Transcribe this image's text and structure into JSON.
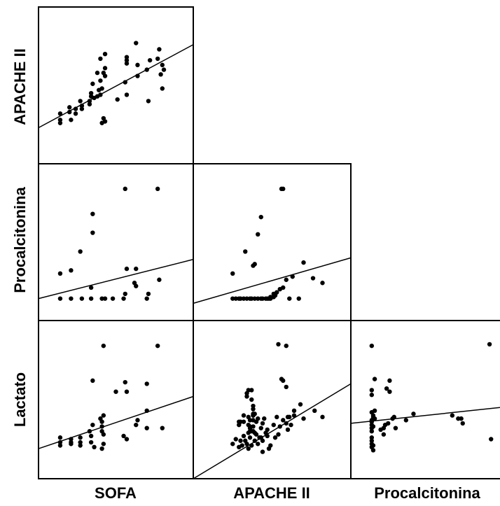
{
  "chart_data": {
    "type": "scatter",
    "variables": [
      "SOFA",
      "APACHE II",
      "Procalcitonina",
      "Lactato"
    ],
    "x_labels": [
      "SOFA",
      "APACHE II",
      "Procalcitonina"
    ],
    "y_labels": [
      "APACHE II",
      "Procalcitonina",
      "Lactato"
    ],
    "grid": false,
    "colors": {
      "points": "#000000",
      "lines": "#000000",
      "background": "#ffffff"
    },
    "panels": [
      {
        "id": "apache-vs-sofa",
        "x_var": "SOFA",
        "y_var": "APACHE II",
        "xlim": [
          0,
          100
        ],
        "ylim": [
          0,
          100
        ],
        "fit": [
          [
            0,
            23
          ],
          [
            100,
            76
          ]
        ],
        "points": [
          [
            14,
            32
          ],
          [
            14,
            28
          ],
          [
            14,
            26
          ],
          [
            20,
            33
          ],
          [
            20,
            36
          ],
          [
            21,
            28
          ],
          [
            24,
            35
          ],
          [
            24,
            32
          ],
          [
            27,
            40
          ],
          [
            28,
            37
          ],
          [
            28,
            35
          ],
          [
            33,
            40
          ],
          [
            33,
            38
          ],
          [
            34,
            43
          ],
          [
            34,
            45
          ],
          [
            35,
            51
          ],
          [
            36,
            42
          ],
          [
            38,
            43
          ],
          [
            39,
            47
          ],
          [
            38,
            58
          ],
          [
            40,
            67
          ],
          [
            40,
            44
          ],
          [
            41,
            48
          ],
          [
            40,
            53
          ],
          [
            42,
            58
          ],
          [
            41,
            26
          ],
          [
            43,
            27
          ],
          [
            42,
            29
          ],
          [
            43,
            70
          ],
          [
            43,
            61
          ],
          [
            43,
            56
          ],
          [
            51,
            41
          ],
          [
            56,
            52
          ],
          [
            57,
            64
          ],
          [
            57,
            68
          ],
          [
            57,
            66
          ],
          [
            57,
            44
          ],
          [
            63,
            77
          ],
          [
            64,
            63
          ],
          [
            64,
            56
          ],
          [
            70,
            60
          ],
          [
            72,
            66
          ],
          [
            71,
            40
          ],
          [
            78,
            73
          ],
          [
            77,
            67
          ],
          [
            79,
            57
          ],
          [
            80,
            48
          ],
          [
            81,
            60
          ],
          [
            80,
            63
          ]
        ]
      },
      {
        "id": "pct-vs-sofa",
        "x_var": "SOFA",
        "y_var": "Procalcitonina",
        "xlim": [
          0,
          100
        ],
        "ylim": [
          0,
          100
        ],
        "fit": [
          [
            0,
            14
          ],
          [
            100,
            39
          ]
        ],
        "points": [
          [
            14,
            14
          ],
          [
            21,
            14
          ],
          [
            28,
            14
          ],
          [
            34,
            14
          ],
          [
            41,
            14
          ],
          [
            43,
            14
          ],
          [
            48,
            14
          ],
          [
            55,
            14
          ],
          [
            56,
            17
          ],
          [
            62,
            24
          ],
          [
            70,
            14
          ],
          [
            71,
            17
          ],
          [
            14,
            30
          ],
          [
            21,
            32
          ],
          [
            27,
            44
          ],
          [
            34,
            21
          ],
          [
            35,
            56
          ],
          [
            35,
            68
          ],
          [
            57,
            33
          ],
          [
            56,
            84
          ],
          [
            63,
            22
          ],
          [
            63,
            33
          ],
          [
            77,
            84
          ],
          [
            78,
            26
          ]
        ]
      },
      {
        "id": "pct-vs-apache",
        "x_var": "APACHE II",
        "y_var": "Procalcitonina",
        "xlim": [
          0,
          100
        ],
        "ylim": [
          0,
          100
        ],
        "fit": [
          [
            0,
            11
          ],
          [
            100,
            40
          ]
        ],
        "points": [
          [
            25,
            14
          ],
          [
            27,
            14
          ],
          [
            29,
            14
          ],
          [
            30,
            14
          ],
          [
            32,
            14
          ],
          [
            34,
            14
          ],
          [
            36,
            14
          ],
          [
            37,
            14
          ],
          [
            39,
            14
          ],
          [
            41,
            14
          ],
          [
            43,
            14
          ],
          [
            44,
            14
          ],
          [
            46,
            14
          ],
          [
            47,
            14
          ],
          [
            48,
            14
          ],
          [
            49,
            14
          ],
          [
            49,
            15
          ],
          [
            51,
            15
          ],
          [
            52,
            16
          ],
          [
            51,
            17
          ],
          [
            55,
            20
          ],
          [
            53,
            18
          ],
          [
            57,
            21
          ],
          [
            59,
            26
          ],
          [
            61,
            14
          ],
          [
            63,
            28
          ],
          [
            67,
            14
          ],
          [
            70,
            37
          ],
          [
            76,
            27
          ],
          [
            82,
            24
          ],
          [
            25,
            30
          ],
          [
            33,
            44
          ],
          [
            38,
            35
          ],
          [
            39,
            36
          ],
          [
            41,
            55
          ],
          [
            43,
            66
          ],
          [
            56,
            84
          ],
          [
            57,
            84
          ]
        ]
      },
      {
        "id": "lac-vs-sofa",
        "x_var": "SOFA",
        "y_var": "Lactato",
        "xlim": [
          0,
          100
        ],
        "ylim": [
          0,
          100
        ],
        "fit": [
          [
            0,
            19
          ],
          [
            100,
            52
          ]
        ],
        "points": [
          [
            14,
            23
          ],
          [
            14,
            21
          ],
          [
            14,
            26
          ],
          [
            21,
            22
          ],
          [
            21,
            23
          ],
          [
            21,
            25
          ],
          [
            27,
            21
          ],
          [
            27,
            23
          ],
          [
            27,
            26
          ],
          [
            34,
            23
          ],
          [
            34,
            27
          ],
          [
            33,
            30
          ],
          [
            35,
            34
          ],
          [
            36,
            20
          ],
          [
            41,
            19
          ],
          [
            42,
            22
          ],
          [
            41,
            30
          ],
          [
            41,
            33
          ],
          [
            41,
            36
          ],
          [
            40,
            38
          ],
          [
            42,
            28
          ],
          [
            42,
            40
          ],
          [
            35,
            62
          ],
          [
            42,
            84
          ],
          [
            50,
            55
          ],
          [
            56,
            61
          ],
          [
            57,
            55
          ],
          [
            55,
            27
          ],
          [
            57,
            25
          ],
          [
            63,
            34
          ],
          [
            64,
            37
          ],
          [
            70,
            32
          ],
          [
            70,
            43
          ],
          [
            70,
            60
          ],
          [
            77,
            84
          ],
          [
            80,
            32
          ]
        ]
      },
      {
        "id": "lac-vs-apache",
        "x_var": "APACHE II",
        "y_var": "Lactato",
        "xlim": [
          0,
          100
        ],
        "ylim": [
          0,
          100
        ],
        "fit": [
          [
            0,
            0
          ],
          [
            100,
            60
          ]
        ],
        "points": [
          [
            25,
            22
          ],
          [
            27,
            25
          ],
          [
            29,
            20
          ],
          [
            30,
            24
          ],
          [
            31,
            21
          ],
          [
            32,
            27
          ],
          [
            33,
            24
          ],
          [
            34,
            22
          ],
          [
            35,
            19
          ],
          [
            36,
            26
          ],
          [
            37,
            21
          ],
          [
            38,
            30
          ],
          [
            39,
            24
          ],
          [
            40,
            28
          ],
          [
            41,
            22
          ],
          [
            42,
            26
          ],
          [
            43,
            32
          ],
          [
            44,
            35
          ],
          [
            44,
            24
          ],
          [
            45,
            38
          ],
          [
            46,
            29
          ],
          [
            47,
            27
          ],
          [
            47,
            31
          ],
          [
            48,
            19
          ],
          [
            49,
            21
          ],
          [
            51,
            34
          ],
          [
            52,
            26
          ],
          [
            53,
            39
          ],
          [
            54,
            28
          ],
          [
            55,
            33
          ],
          [
            57,
            37
          ],
          [
            59,
            35
          ],
          [
            60,
            31
          ],
          [
            60,
            39
          ],
          [
            61,
            39
          ],
          [
            62,
            34
          ],
          [
            64,
            40
          ],
          [
            64,
            43
          ],
          [
            68,
            47
          ],
          [
            70,
            38
          ],
          [
            77,
            43
          ],
          [
            82,
            39
          ],
          [
            36,
            30
          ],
          [
            38,
            37
          ],
          [
            38,
            40
          ],
          [
            34,
            52
          ],
          [
            34,
            54
          ],
          [
            35,
            34
          ],
          [
            37,
            30
          ],
          [
            35,
            29
          ],
          [
            36,
            33
          ],
          [
            37,
            50
          ],
          [
            44,
            17
          ],
          [
            35,
            56
          ],
          [
            37,
            56
          ],
          [
            29,
            36
          ],
          [
            29,
            34
          ],
          [
            32,
            36
          ],
          [
            32,
            40
          ],
          [
            30,
            36
          ],
          [
            38,
            44
          ],
          [
            38,
            33
          ],
          [
            40,
            36
          ],
          [
            36,
            37
          ],
          [
            43,
            26
          ],
          [
            38,
            46
          ],
          [
            39,
            29
          ],
          [
            36,
            32
          ],
          [
            39,
            41
          ],
          [
            56,
            63
          ],
          [
            57,
            62
          ],
          [
            59,
            58
          ],
          [
            54,
            85
          ],
          [
            59,
            84
          ],
          [
            38,
            40
          ],
          [
            41,
            38
          ],
          [
            35,
            39
          ],
          [
            38,
            41
          ]
        ]
      },
      {
        "id": "lac-vs-pct",
        "x_var": "Procalcitonina",
        "y_var": "Lactato",
        "xlim": [
          0,
          100
        ],
        "ylim": [
          0,
          100
        ],
        "fit": [
          [
            0,
            35
          ],
          [
            100,
            45
          ]
        ],
        "points": [
          [
            14,
            26
          ],
          [
            14,
            24
          ],
          [
            14,
            22
          ],
          [
            14,
            20
          ],
          [
            15,
            18
          ],
          [
            15,
            21
          ],
          [
            14,
            30
          ],
          [
            14,
            32
          ],
          [
            15,
            33
          ],
          [
            14,
            34
          ],
          [
            14,
            36
          ],
          [
            14,
            37
          ],
          [
            15,
            39
          ],
          [
            15,
            40
          ],
          [
            14,
            42
          ],
          [
            16,
            43
          ],
          [
            16,
            38
          ],
          [
            22,
            28
          ],
          [
            22,
            32
          ],
          [
            23,
            34
          ],
          [
            20,
            31
          ],
          [
            25,
            35
          ],
          [
            28,
            38
          ],
          [
            30,
            32
          ],
          [
            29,
            39
          ],
          [
            37,
            37
          ],
          [
            42,
            41
          ],
          [
            68,
            40
          ],
          [
            72,
            38
          ],
          [
            74,
            38
          ],
          [
            75,
            35
          ],
          [
            14,
            53
          ],
          [
            14,
            56
          ],
          [
            16,
            63
          ],
          [
            24,
            57
          ],
          [
            26,
            62
          ],
          [
            26,
            55
          ],
          [
            14,
            84
          ],
          [
            93,
            85
          ],
          [
            94,
            25
          ]
        ]
      }
    ]
  }
}
